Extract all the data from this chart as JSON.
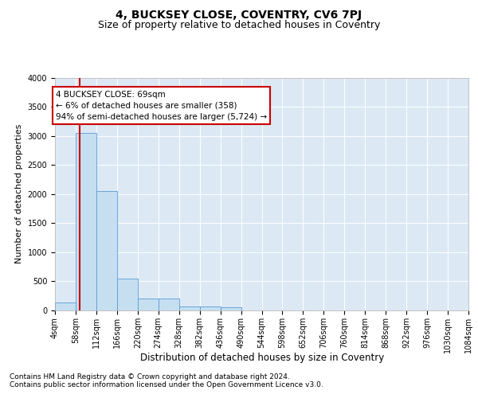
{
  "title1": "4, BUCKSEY CLOSE, COVENTRY, CV6 7PJ",
  "title2": "Size of property relative to detached houses in Coventry",
  "xlabel": "Distribution of detached houses by size in Coventry",
  "ylabel": "Number of detached properties",
  "footer1": "Contains HM Land Registry data © Crown copyright and database right 2024.",
  "footer2": "Contains public sector information licensed under the Open Government Licence v3.0.",
  "bins": [
    4,
    58,
    112,
    166,
    220,
    274,
    328,
    382,
    436,
    490,
    544,
    598,
    652,
    706,
    760,
    814,
    868,
    922,
    976,
    1030,
    1084
  ],
  "bin_labels": [
    "4sqm",
    "58sqm",
    "112sqm",
    "166sqm",
    "220sqm",
    "274sqm",
    "328sqm",
    "382sqm",
    "436sqm",
    "490sqm",
    "544sqm",
    "598sqm",
    "652sqm",
    "706sqm",
    "760sqm",
    "814sqm",
    "868sqm",
    "922sqm",
    "976sqm",
    "1030sqm",
    "1084sqm"
  ],
  "values": [
    130,
    3050,
    2050,
    550,
    200,
    200,
    75,
    75,
    50,
    0,
    0,
    0,
    0,
    0,
    0,
    0,
    0,
    0,
    0,
    0
  ],
  "bar_color": "#c5dff0",
  "bar_edge_color": "#5b9bd5",
  "property_line_x": 69,
  "property_line_color": "#cc0000",
  "annotation_text": "4 BUCKSEY CLOSE: 69sqm\n← 6% of detached houses are smaller (358)\n94% of semi-detached houses are larger (5,724) →",
  "annotation_box_color": "#ffffff",
  "annotation_box_edge": "#cc0000",
  "ylim": [
    0,
    4000
  ],
  "yticks": [
    0,
    500,
    1000,
    1500,
    2000,
    2500,
    3000,
    3500,
    4000
  ],
  "background_color": "#dce9f5",
  "title1_fontsize": 10,
  "title2_fontsize": 9,
  "xlabel_fontsize": 8.5,
  "ylabel_fontsize": 8,
  "tick_fontsize": 7,
  "footer_fontsize": 6.5,
  "annotation_fontsize": 7.5
}
